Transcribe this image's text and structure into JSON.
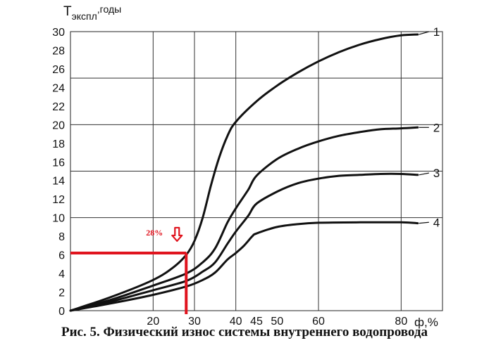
{
  "caption": "Рис. 5. Физический износ системы внутреннего водопровода",
  "chart_data": {
    "type": "line",
    "title": "",
    "ylabel_main": "T",
    "ylabel_sub": "экспл",
    "ylabel_suffix": ",годы",
    "xlabel": "ф,%",
    "xlim": [
      0,
      90
    ],
    "ylim": [
      0,
      30
    ],
    "grid": true,
    "x_ticks": [
      20,
      30,
      40,
      45,
      50,
      60,
      80
    ],
    "x_gridlines": [
      20,
      30,
      40,
      60,
      80
    ],
    "y_ticks": [
      0,
      2,
      4,
      6,
      8,
      10,
      12,
      14,
      16,
      18,
      20,
      22,
      24,
      26,
      28,
      30
    ],
    "y_gridlines": [
      10,
      15,
      20,
      25,
      30
    ],
    "series": [
      {
        "name": "1",
        "label_y": 30,
        "x": [
          0,
          10,
          20,
          25,
          28,
          30,
          32,
          34,
          36,
          38,
          40,
          45,
          50,
          55,
          60,
          65,
          70,
          75,
          80,
          84
        ],
        "y": [
          0,
          1.5,
          3.3,
          4.7,
          6,
          7.5,
          10,
          13.5,
          16.5,
          18.8,
          20.3,
          22.5,
          24.2,
          25.6,
          26.8,
          27.8,
          28.6,
          29.2,
          29.6,
          29.7
        ]
      },
      {
        "name": "2",
        "label_y": 19.7,
        "x": [
          0,
          10,
          20,
          28,
          32,
          35,
          38,
          40,
          43,
          45,
          50,
          55,
          60,
          65,
          70,
          75,
          80,
          84
        ],
        "y": [
          0,
          1.2,
          2.7,
          4,
          5.2,
          6.7,
          9.5,
          11,
          13,
          14.5,
          16.3,
          17.4,
          18.2,
          18.8,
          19.2,
          19.5,
          19.6,
          19.7
        ]
      },
      {
        "name": "3",
        "label_y": 14.8,
        "x": [
          0,
          10,
          20,
          28,
          32,
          35,
          38,
          40,
          43,
          45,
          50,
          55,
          60,
          65,
          70,
          75,
          80,
          84
        ],
        "y": [
          0,
          1,
          2.2,
          3.2,
          4.2,
          5.2,
          7.2,
          8.5,
          10.2,
          11.5,
          12.8,
          13.7,
          14.2,
          14.5,
          14.6,
          14.7,
          14.7,
          14.6
        ]
      },
      {
        "name": "4",
        "label_y": 9.5,
        "x": [
          0,
          10,
          20,
          28,
          32,
          35,
          38,
          40,
          42,
          44,
          45,
          50,
          55,
          60,
          70,
          80,
          84
        ],
        "y": [
          0,
          0.8,
          1.7,
          2.6,
          3.3,
          4.1,
          5.5,
          6.2,
          7,
          8,
          8.3,
          9,
          9.3,
          9.45,
          9.5,
          9.5,
          9.4
        ]
      }
    ],
    "annotation": {
      "label": "28%",
      "x": 28,
      "y": 6.2,
      "color": "#e0141e"
    }
  }
}
